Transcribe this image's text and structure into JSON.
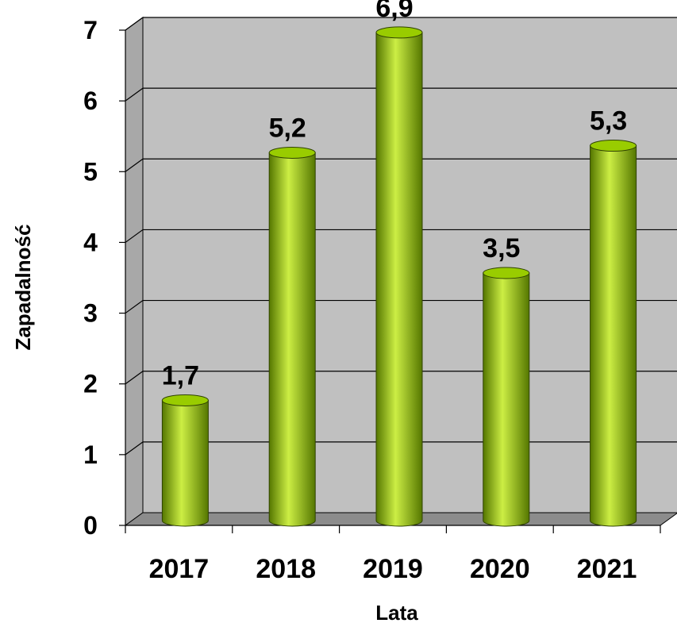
{
  "chart_data": {
    "type": "bar",
    "categories": [
      "2017",
      "2018",
      "2019",
      "2020",
      "2021"
    ],
    "values": [
      1.7,
      5.2,
      6.9,
      3.5,
      5.3
    ],
    "value_labels": [
      "1,7",
      "5,2",
      "6,9",
      "3,5",
      "5,3"
    ],
    "xlabel": "Lata",
    "ylabel": "Zapadalność",
    "ylim": [
      0,
      7
    ],
    "yticks": [
      "0",
      "1",
      "2",
      "3",
      "4",
      "5",
      "6",
      "7"
    ],
    "grid": true,
    "legend": "none",
    "bar_style": "3d-cylinder"
  },
  "colors": {
    "bar": "#99cc00",
    "bar_highlight": "#ccee44",
    "bar_shadow": "#557700",
    "plot_back_wall": "#c0c0c0",
    "plot_side_wall": "#a8a8a8",
    "plot_floor": "#8c8c8c",
    "gridline": "#000000"
  }
}
